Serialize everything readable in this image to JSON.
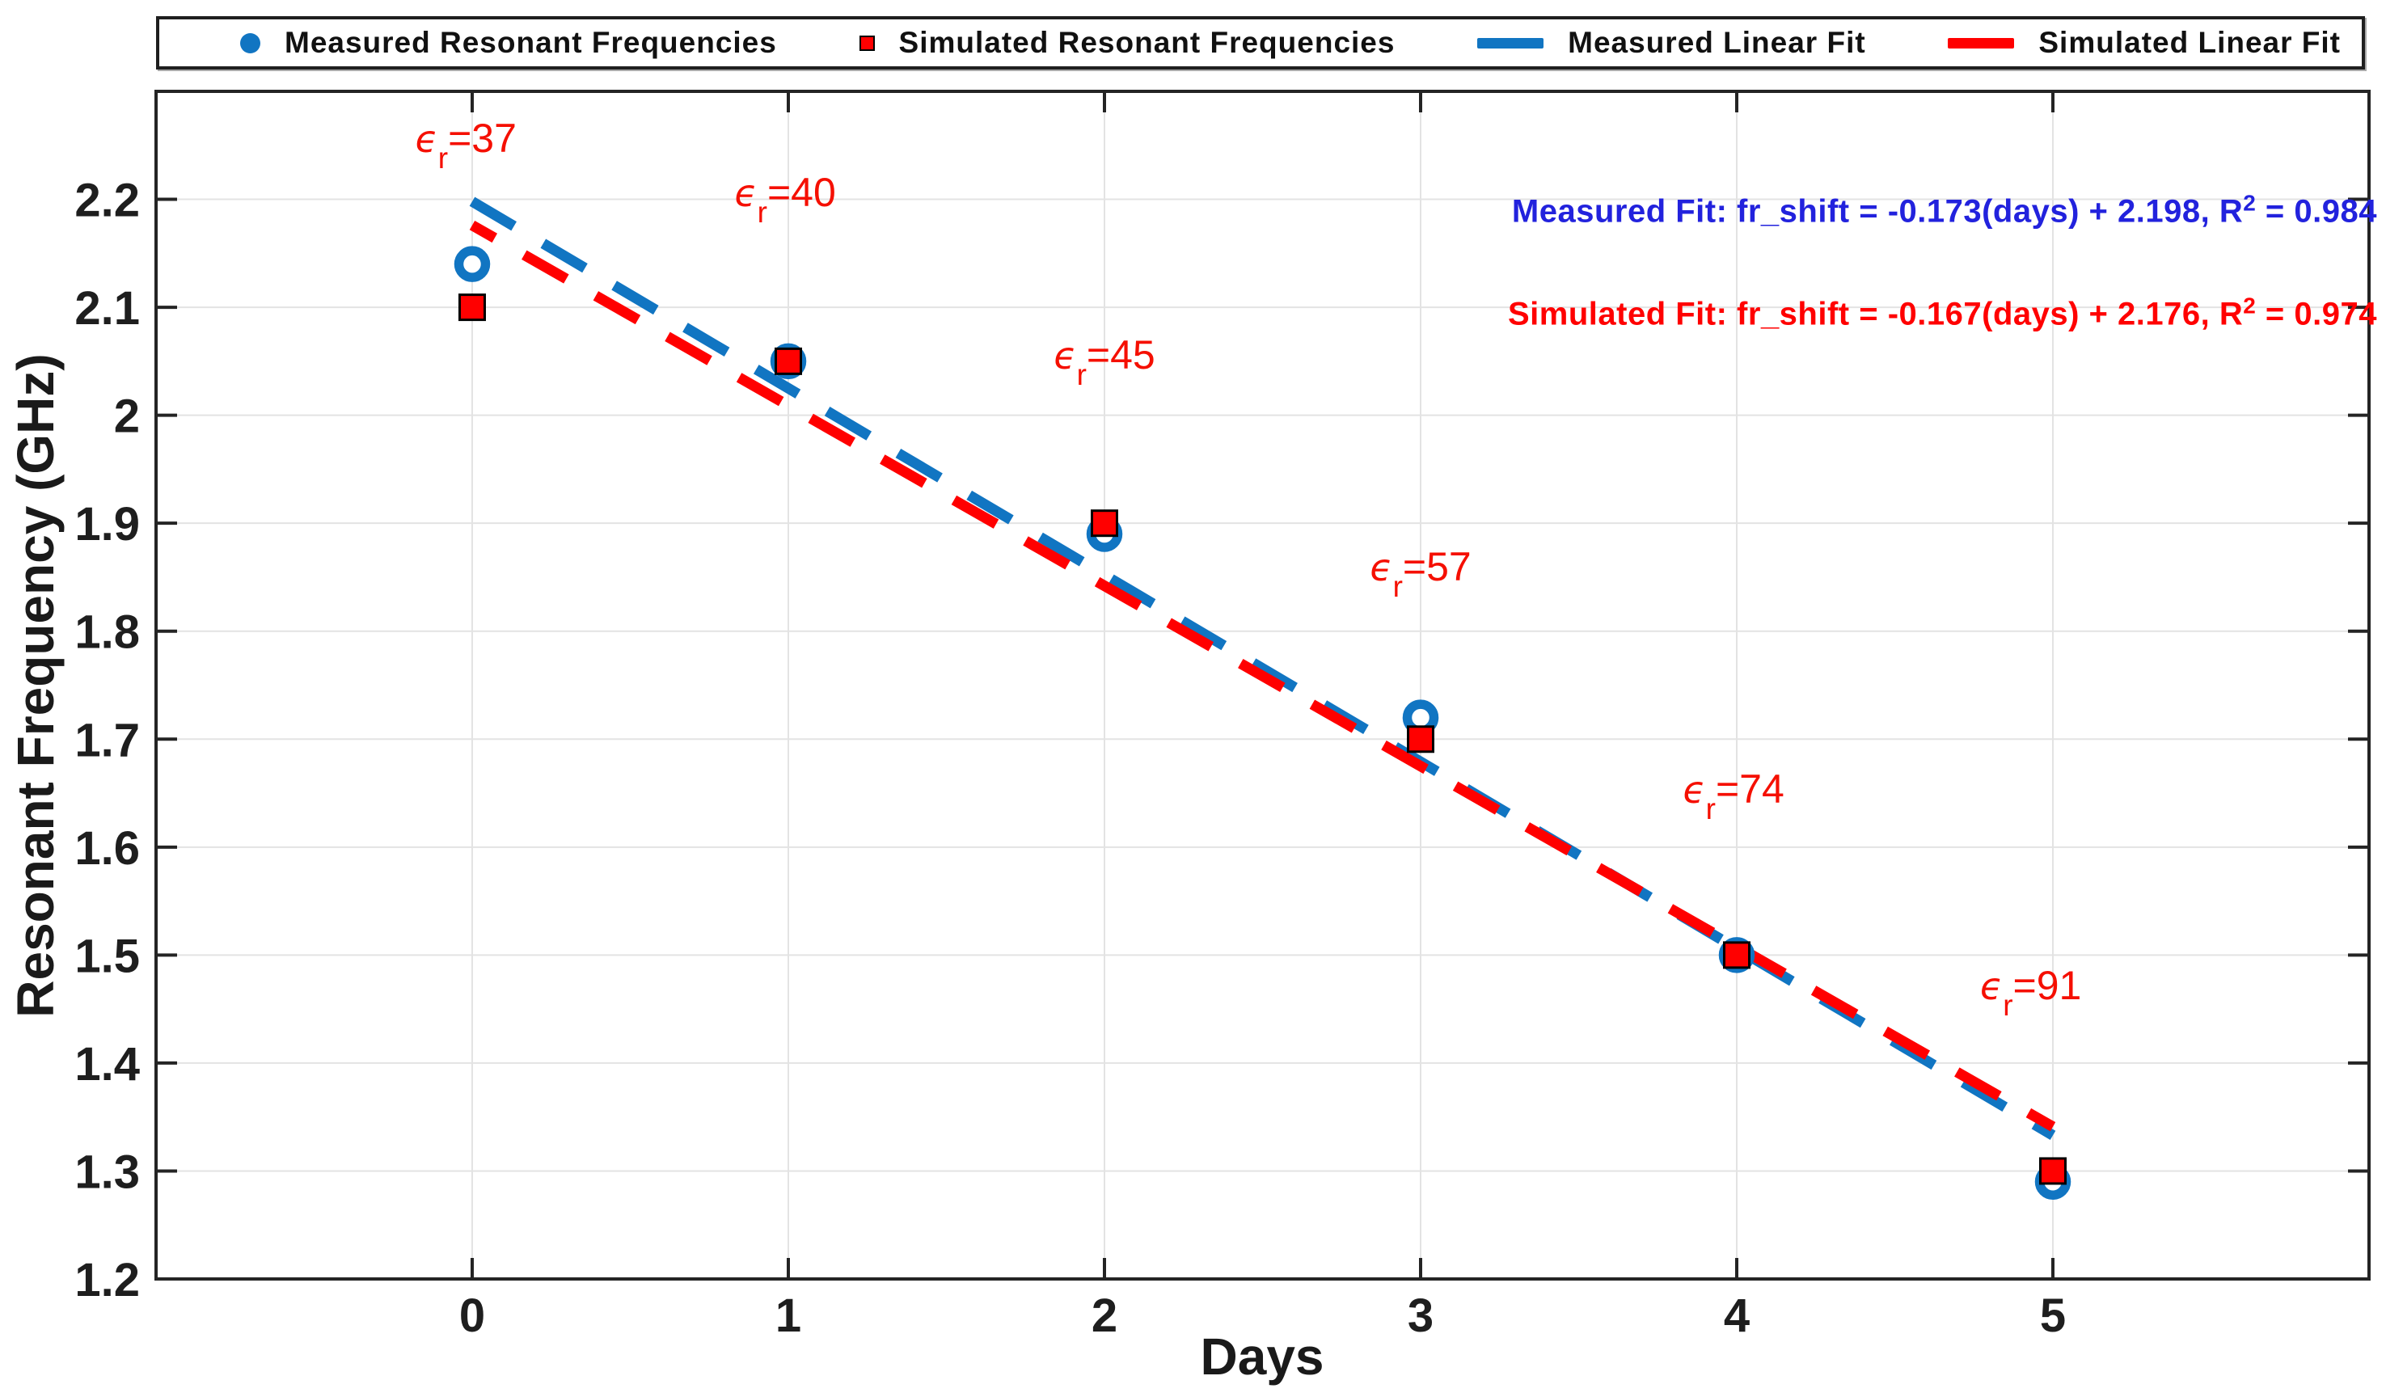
{
  "legend": {
    "items": [
      {
        "label": "Measured Resonant Frequencies",
        "marker": "circle",
        "color": "#1175c2"
      },
      {
        "label": "Simulated Resonant Frequencies",
        "marker": "square",
        "color": "#ff0000",
        "edge": "#000000"
      },
      {
        "label": "Measured Linear Fit",
        "marker": "dash",
        "color": "#1175c2"
      },
      {
        "label": "Simulated Linear Fit",
        "marker": "dash",
        "color": "#ff0000"
      }
    ]
  },
  "chart_data": {
    "type": "scatter",
    "title": "",
    "xlabel": "Days",
    "ylabel": "Resonant Frequency (GHz)",
    "xlim": [
      -1,
      6
    ],
    "ylim": [
      1.2,
      2.3
    ],
    "grid": true,
    "legend_position": "top",
    "x_ticks": [
      0,
      1,
      2,
      3,
      4,
      5
    ],
    "x_tick_labels": [
      "0",
      "1",
      "2",
      "3",
      "4",
      "5"
    ],
    "y_ticks": [
      1.2,
      1.3,
      1.4,
      1.5,
      1.6,
      1.7,
      1.8,
      1.9,
      2.0,
      2.1,
      2.2
    ],
    "y_tick_labels": [
      "1.2",
      "1.3",
      "1.4",
      "1.5",
      "1.6",
      "1.7",
      "1.8",
      "1.9",
      "2",
      "2.1",
      "2.2"
    ],
    "series": [
      {
        "name": "Measured Resonant Frequencies",
        "type": "scatter",
        "marker": "open-circle",
        "color": "#1175c2",
        "x": [
          0,
          1,
          2,
          3,
          4,
          5
        ],
        "y": [
          2.14,
          2.05,
          1.89,
          1.72,
          1.5,
          1.29
        ]
      },
      {
        "name": "Simulated Resonant Frequencies",
        "type": "scatter",
        "marker": "filled-square",
        "color": "#ff0000",
        "edge_color": "#000000",
        "x": [
          0,
          1,
          2,
          3,
          4,
          5
        ],
        "y": [
          2.1,
          2.05,
          1.9,
          1.7,
          1.5,
          1.3
        ]
      },
      {
        "name": "Measured Linear Fit",
        "type": "line",
        "style": "dashed",
        "color": "#1175c2",
        "slope": -0.173,
        "intercept": 2.198,
        "r2": 0.984,
        "x_start": 0,
        "x_end": 5,
        "dash_offset": 0
      },
      {
        "name": "Simulated Linear Fit",
        "type": "line",
        "style": "dashed",
        "color": "#ff0000",
        "slope": -0.167,
        "intercept": 2.176,
        "r2": 0.974,
        "x_start": 0,
        "x_end": 5,
        "dash_offset": 28
      }
    ],
    "point_labels": [
      {
        "eps": "ϵ",
        "sub": "r",
        "value": "=37",
        "x": -0.02,
        "y": 2.25
      },
      {
        "eps": "ϵ",
        "sub": "r",
        "value": "=40",
        "x": 0.99,
        "y": 2.2
      },
      {
        "eps": "ϵ",
        "sub": "r",
        "value": "=45",
        "x": 2.0,
        "y": 2.049
      },
      {
        "eps": "ϵ",
        "sub": "r",
        "value": "=57",
        "x": 3.0,
        "y": 1.853
      },
      {
        "eps": "ϵ",
        "sub": "r",
        "value": "=74",
        "x": 3.99,
        "y": 1.647
      },
      {
        "eps": "ϵ",
        "sub": "r",
        "value": "=91",
        "x": 4.93,
        "y": 1.465
      }
    ],
    "fit_annotations": [
      {
        "prefix": "Measured Fit: fr_shift = -0.173(days) + 2.198, R",
        "sup": "2",
        "suffix": " = 0.984",
        "color": "#2222dd",
        "y": 2.19
      },
      {
        "prefix": "Simulated Fit: fr_shift = -0.167(days) + 2.176, R",
        "sup": "2",
        "suffix": " = 0.974",
        "color": "#ff0000",
        "y": 2.095
      }
    ],
    "colors": {
      "measured_blue": "#1175c2",
      "simulated_red": "#ff0000",
      "annotation_blue": "#2222dd",
      "annotation_red": "#ff0000",
      "epsilon_red": "#f50f00",
      "axis": "#242424",
      "grid": "#e3e3e3",
      "tick_text": "#1e1e1e"
    }
  }
}
